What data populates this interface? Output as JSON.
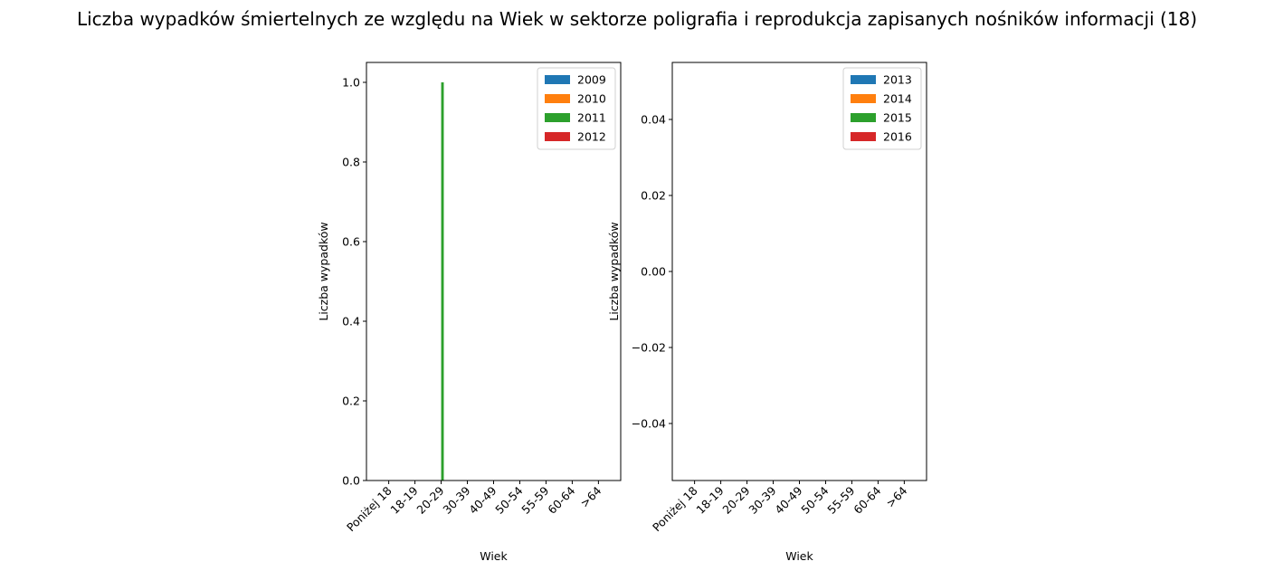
{
  "figure": {
    "title": "Liczba wypadków śmiertelnych ze względu na Wiek w sektorze poligrafia i reprodukcja zapisanych nośników informacji  (18)"
  },
  "chart_data": [
    {
      "type": "bar",
      "title": "",
      "xlabel": "Wiek",
      "ylabel": "Liczba wypadków",
      "categories": [
        "Poniżej 18",
        "18-19",
        "20-29",
        "30-39",
        "40-49",
        "50-54",
        "55-59",
        "60-64",
        ">64"
      ],
      "ylim": [
        0,
        1.05
      ],
      "yticks": [
        0.0,
        0.2,
        0.4,
        0.6,
        0.8,
        1.0
      ],
      "ytick_labels": [
        "0.0",
        "0.2",
        "0.4",
        "0.6",
        "0.8",
        "1.0"
      ],
      "legend_position": "top-right",
      "series": [
        {
          "name": "2009",
          "color": "#1f77b4",
          "values": [
            0,
            0,
            0,
            0,
            0,
            0,
            0,
            0,
            0
          ]
        },
        {
          "name": "2010",
          "color": "#ff7f0e",
          "values": [
            0,
            0,
            0,
            0,
            0,
            0,
            0,
            0,
            0
          ]
        },
        {
          "name": "2011",
          "color": "#2ca02c",
          "values": [
            0,
            0,
            1,
            0,
            0,
            0,
            0,
            0,
            0
          ]
        },
        {
          "name": "2012",
          "color": "#d62728",
          "values": [
            0,
            0,
            0,
            0,
            0,
            0,
            0,
            0,
            0
          ]
        }
      ]
    },
    {
      "type": "bar",
      "title": "",
      "xlabel": "Wiek",
      "ylabel": "Liczba wypadków",
      "categories": [
        "Poniżej 18",
        "18-19",
        "20-29",
        "30-39",
        "40-49",
        "50-54",
        "55-59",
        "60-64",
        ">64"
      ],
      "ylim": [
        -0.055,
        0.055
      ],
      "yticks": [
        -0.04,
        -0.02,
        0.0,
        0.02,
        0.04
      ],
      "ytick_labels": [
        "−0.04",
        "−0.02",
        "0.00",
        "0.02",
        "0.04"
      ],
      "legend_position": "top-right",
      "series": [
        {
          "name": "2013",
          "color": "#1f77b4",
          "values": [
            0,
            0,
            0,
            0,
            0,
            0,
            0,
            0,
            0
          ]
        },
        {
          "name": "2014",
          "color": "#ff7f0e",
          "values": [
            0,
            0,
            0,
            0,
            0,
            0,
            0,
            0,
            0
          ]
        },
        {
          "name": "2015",
          "color": "#2ca02c",
          "values": [
            0,
            0,
            0,
            0,
            0,
            0,
            0,
            0,
            0
          ]
        },
        {
          "name": "2016",
          "color": "#d62728",
          "values": [
            0,
            0,
            0,
            0,
            0,
            0,
            0,
            0,
            0
          ]
        }
      ]
    }
  ]
}
